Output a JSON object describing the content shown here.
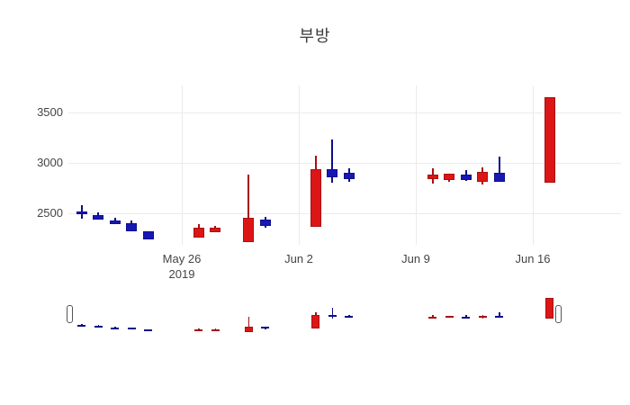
{
  "chart_data": {
    "type": "candlestick",
    "title": "부방",
    "xlabel": "",
    "ylabel": "",
    "grid": true,
    "legend": "none",
    "y_ticks": [
      "2500",
      "3000",
      "3500"
    ],
    "y_tick_values": [
      2500,
      3000,
      3500
    ],
    "y_range": [
      2185,
      3770
    ],
    "x_ticks": [
      {
        "label": "May 26",
        "sublabel": "2019",
        "day": 0
      },
      {
        "label": "Jun 2",
        "sublabel": "",
        "day": 7
      },
      {
        "label": "Jun 9",
        "sublabel": "",
        "day": 14
      },
      {
        "label": "Jun 16",
        "sublabel": "",
        "day": 21
      }
    ],
    "colors": {
      "increasing_fill": "#dc1616",
      "increasing_line": "#a81010",
      "decreasing_fill": "#1717b4",
      "decreasing_line": "#0e0e8a",
      "grid": "#ebebeb",
      "text": "#444444"
    },
    "candles": [
      {
        "date": "May 20",
        "day": -6,
        "open": 2515,
        "high": 2580,
        "low": 2445,
        "close": 2490
      },
      {
        "date": "May 21",
        "day": -5,
        "open": 2480,
        "high": 2510,
        "low": 2435,
        "close": 2435
      },
      {
        "date": "May 22",
        "day": -4,
        "open": 2430,
        "high": 2455,
        "low": 2390,
        "close": 2390
      },
      {
        "date": "May 23",
        "day": -3,
        "open": 2400,
        "high": 2425,
        "low": 2320,
        "close": 2320
      },
      {
        "date": "May 24",
        "day": -2,
        "open": 2320,
        "high": 2320,
        "low": 2240,
        "close": 2240
      },
      {
        "date": "May 27",
        "day": 1,
        "open": 2260,
        "high": 2390,
        "low": 2260,
        "close": 2355
      },
      {
        "date": "May 28",
        "day": 2,
        "open": 2315,
        "high": 2375,
        "low": 2315,
        "close": 2355
      },
      {
        "date": "May 30",
        "day": 4,
        "open": 2215,
        "high": 2880,
        "low": 2215,
        "close": 2450
      },
      {
        "date": "May 31",
        "day": 5,
        "open": 2440,
        "high": 2465,
        "low": 2350,
        "close": 2370
      },
      {
        "date": "Jun 3",
        "day": 8,
        "open": 2365,
        "high": 3070,
        "low": 2365,
        "close": 2935
      },
      {
        "date": "Jun 4",
        "day": 9,
        "open": 2935,
        "high": 3230,
        "low": 2800,
        "close": 2860
      },
      {
        "date": "Jun 5",
        "day": 10,
        "open": 2900,
        "high": 2945,
        "low": 2815,
        "close": 2835
      },
      {
        "date": "Jun 10",
        "day": 15,
        "open": 2835,
        "high": 2950,
        "low": 2790,
        "close": 2880
      },
      {
        "date": "Jun 11",
        "day": 16,
        "open": 2830,
        "high": 2895,
        "low": 2810,
        "close": 2895
      },
      {
        "date": "Jun 12",
        "day": 17,
        "open": 2885,
        "high": 2925,
        "low": 2825,
        "close": 2825
      },
      {
        "date": "Jun 13",
        "day": 18,
        "open": 2810,
        "high": 2960,
        "low": 2785,
        "close": 2915
      },
      {
        "date": "Jun 14",
        "day": 19,
        "open": 2905,
        "high": 3060,
        "low": 2810,
        "close": 2810
      },
      {
        "date": "Jun 17",
        "day": 22,
        "open": 2805,
        "high": 3650,
        "low": 2805,
        "close": 3650
      }
    ],
    "rangeslider": {
      "visible": true,
      "handle_left_day": -6.73,
      "handle_right_day": 22.55
    }
  }
}
